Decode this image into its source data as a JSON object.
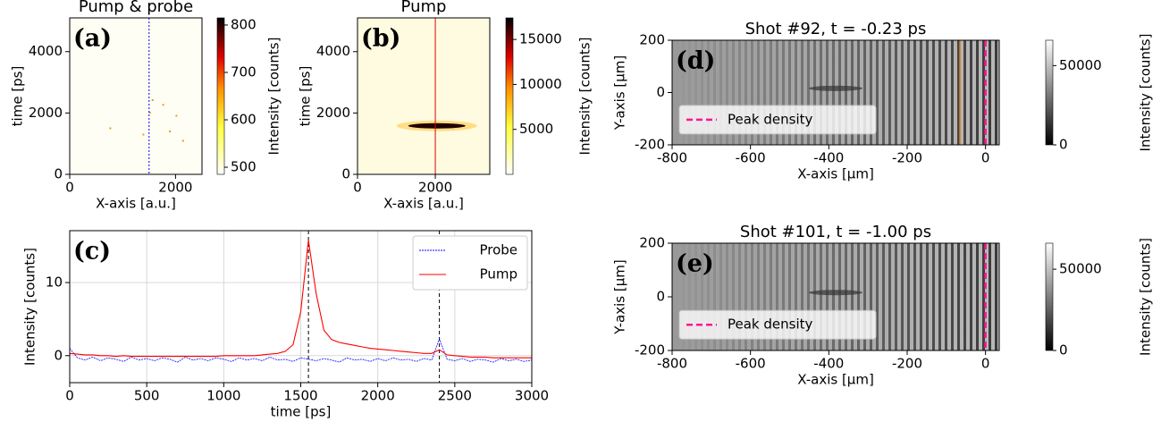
{
  "chart_data": [
    {
      "type": "heatmap",
      "title": "Pump & probe",
      "panel_label": "(a)",
      "xlabel": "X-axis [a.u.]",
      "ylabel": "time [ps]",
      "xlim": [
        0,
        2500
      ],
      "xticks": [
        0,
        2000
      ],
      "ylim": [
        0,
        5100
      ],
      "yticks": [
        0,
        2000,
        4000
      ],
      "vline_x": 1500,
      "vline_color": "#0000ff",
      "colorbar": {
        "label": "Intensity [counts]",
        "lim": [
          485,
          815
        ],
        "ticks": [
          500,
          600,
          700,
          800
        ]
      }
    },
    {
      "type": "heatmap",
      "title": "Pump",
      "panel_label": "(b)",
      "xlabel": "X-axis [a.u.]",
      "ylabel": "time [ps]",
      "xlim": [
        0,
        3400
      ],
      "xticks": [
        0,
        2000
      ],
      "ylim": [
        0,
        5100
      ],
      "yticks": [
        0,
        2000,
        4000
      ],
      "vline_x": 2000,
      "vline_color": "#e00000",
      "colorbar": {
        "label": "Intensity [counts]",
        "lim": [
          0,
          17400
        ],
        "ticks": [
          5000,
          10000,
          15000
        ]
      }
    },
    {
      "type": "line",
      "panel_label": "(c)",
      "xlabel": "time [ps]",
      "ylabel": "Intensity [counts]",
      "xlim": [
        0,
        3000
      ],
      "xticks": [
        0,
        500,
        1000,
        1500,
        2000,
        2500,
        3000
      ],
      "ylim": [
        -3.7,
        17.1
      ],
      "yticks": [
        0,
        10
      ],
      "grid": true,
      "legend": "upper right",
      "vlines": [
        1550,
        2400
      ],
      "x": [
        0,
        50,
        100,
        150,
        200,
        250,
        300,
        350,
        400,
        450,
        500,
        550,
        600,
        650,
        700,
        750,
        800,
        850,
        900,
        950,
        1000,
        1050,
        1100,
        1150,
        1200,
        1250,
        1300,
        1350,
        1400,
        1450,
        1500,
        1550,
        1600,
        1650,
        1700,
        1750,
        1800,
        1850,
        1900,
        1950,
        2000,
        2050,
        2100,
        2150,
        2200,
        2250,
        2300,
        2350,
        2400,
        2450,
        2500,
        2550,
        2600,
        2650,
        2700,
        2750,
        2800,
        2850,
        2900,
        2950,
        3000
      ],
      "series": [
        {
          "name": "Probe",
          "color": "#0000ff",
          "values": [
            1.0,
            -0.3,
            -0.6,
            -0.2,
            -0.7,
            -0.3,
            -0.5,
            -0.8,
            -0.2,
            -0.6,
            -0.4,
            -0.7,
            -0.3,
            -0.5,
            -0.9,
            -0.2,
            -0.6,
            -0.4,
            -0.7,
            -0.3,
            -0.5,
            -0.8,
            -0.3,
            -0.6,
            -0.4,
            -0.7,
            -0.2,
            -0.6,
            -0.5,
            -0.8,
            -0.3,
            -0.5,
            -0.7,
            -0.4,
            -0.6,
            -0.9,
            -0.3,
            -0.6,
            -0.5,
            -0.8,
            -0.4,
            -0.7,
            -0.3,
            -0.6,
            -0.5,
            -0.8,
            -0.4,
            -0.6,
            2.3,
            -0.5,
            -0.7,
            -0.4,
            -0.8,
            -0.5,
            -0.6,
            -0.9,
            -0.4,
            -0.7,
            -0.5,
            -0.8,
            -0.6
          ]
        },
        {
          "name": "Pump",
          "color": "#ff0000",
          "values": [
            0.3,
            0.2,
            0.1,
            0.1,
            0.0,
            0.0,
            -0.1,
            0.0,
            -0.1,
            -0.1,
            -0.1,
            -0.1,
            -0.1,
            -0.1,
            -0.1,
            -0.1,
            -0.1,
            -0.1,
            -0.1,
            -0.1,
            0.0,
            0.0,
            0.0,
            0.0,
            0.0,
            0.1,
            0.2,
            0.3,
            0.6,
            1.5,
            6.0,
            15.8,
            8.5,
            3.5,
            2.2,
            1.8,
            1.6,
            1.4,
            1.2,
            1.0,
            0.9,
            0.8,
            0.7,
            0.6,
            0.5,
            0.4,
            0.3,
            0.3,
            0.8,
            0.1,
            0.0,
            -0.1,
            -0.2,
            -0.2,
            -0.2,
            -0.3,
            -0.3,
            -0.3,
            -0.3,
            -0.3,
            -0.3
          ]
        }
      ]
    },
    {
      "type": "image",
      "title": "Shot #92, t = -0.23 ps",
      "panel_label": "(d)",
      "xlabel": "X-axis [µm]",
      "ylabel": "Y-axis [µm]",
      "xlim": [
        -800,
        35
      ],
      "xticks": [
        -800,
        -600,
        -400,
        -200,
        0
      ],
      "ylim": [
        -200,
        200
      ],
      "yticks": [
        -200,
        0,
        200
      ],
      "legend": "center left",
      "series": [
        {
          "name": "Peak density",
          "color": "#ff1493",
          "x": 0
        }
      ],
      "colorbar": {
        "label": "Intensity [counts]",
        "lim": [
          0,
          66000
        ],
        "ticks": [
          0,
          50000
        ]
      }
    },
    {
      "type": "image",
      "title": "Shot #101, t = -1.00 ps",
      "panel_label": "(e)",
      "xlabel": "X-axis [µm]",
      "ylabel": "Y-axis [µm]",
      "xlim": [
        -800,
        35
      ],
      "xticks": [
        -800,
        -600,
        -400,
        -200,
        0
      ],
      "ylim": [
        -200,
        200
      ],
      "yticks": [
        -200,
        0,
        200
      ],
      "legend": "center left",
      "series": [
        {
          "name": "Peak density",
          "color": "#ff1493",
          "x": 0
        }
      ],
      "colorbar": {
        "label": "Intensity [counts]",
        "lim": [
          0,
          66000
        ],
        "ticks": [
          0,
          50000
        ]
      }
    }
  ]
}
